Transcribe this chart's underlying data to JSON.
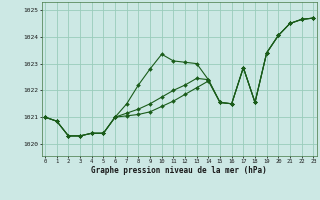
{
  "title": "Graphe pression niveau de la mer (hPa)",
  "background_color": "#cce8e4",
  "grid_color": "#99ccbb",
  "line_color": "#1a5c1a",
  "xlim_min": -0.3,
  "xlim_max": 23.3,
  "ylim_min": 1019.55,
  "ylim_max": 1025.3,
  "yticks": [
    1020,
    1021,
    1022,
    1023,
    1024,
    1025
  ],
  "xticks": [
    0,
    1,
    2,
    3,
    4,
    5,
    6,
    7,
    8,
    9,
    10,
    11,
    12,
    13,
    14,
    15,
    16,
    17,
    18,
    19,
    20,
    21,
    22,
    23
  ],
  "s1": [
    1021.0,
    1020.85,
    1020.3,
    1020.3,
    1020.4,
    1020.4,
    1021.0,
    1021.5,
    1022.2,
    1022.8,
    1023.35,
    1023.1,
    1023.05,
    1023.0,
    1022.4,
    1021.55,
    1021.5,
    1022.85,
    1021.55,
    1023.4,
    1024.05,
    1024.5,
    1024.65,
    1024.7
  ],
  "s2": [
    1021.0,
    1020.85,
    1020.3,
    1020.3,
    1020.4,
    1020.4,
    1021.0,
    1021.05,
    1021.1,
    1021.2,
    1021.4,
    1021.6,
    1021.85,
    1022.1,
    1022.35,
    1021.55,
    1021.5,
    1022.85,
    1021.55,
    1023.4,
    1024.05,
    1024.5,
    1024.65,
    1024.7
  ],
  "s3": [
    1021.0,
    1020.85,
    1020.3,
    1020.3,
    1020.4,
    1020.4,
    1021.0,
    1021.15,
    1021.3,
    1021.5,
    1021.75,
    1022.0,
    1022.2,
    1022.45,
    1022.4,
    1021.55,
    1021.5,
    1022.85,
    1021.55,
    1023.4,
    1024.05,
    1024.5,
    1024.65,
    1024.7
  ]
}
